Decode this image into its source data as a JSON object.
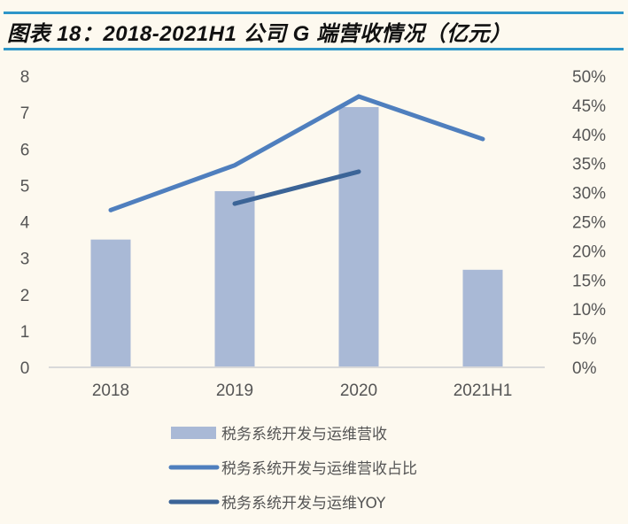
{
  "header": {
    "title": "图表 18：2018-2021H1 公司 G 端营收情况（亿元）",
    "rule_color": "#2e96c8"
  },
  "colors": {
    "background": "#fdf9ef",
    "bar": "#a9b9d6",
    "share_line": "#4f7fbe",
    "yoy_line": "#3b6497",
    "axis_line": "#d9d9d9",
    "tick_text": "#555555"
  },
  "chart_data": {
    "type": "bar",
    "title": "2018-2021H1 公司 G 端营收情况（亿元）",
    "xlabel": "",
    "ylabel": "",
    "categories": [
      "2018",
      "2019",
      "2020",
      "2021H1"
    ],
    "left_axis": {
      "ylim": [
        0,
        8
      ],
      "ticks": [
        "0",
        "1",
        "2",
        "3",
        "4",
        "5",
        "6",
        "7",
        "8"
      ]
    },
    "right_axis": {
      "ylim": [
        0,
        0.5
      ],
      "ticks": [
        "0%",
        "5%",
        "10%",
        "15%",
        "20%",
        "25%",
        "30%",
        "35%",
        "40%",
        "45%",
        "50%"
      ]
    },
    "grid": false,
    "legend_position": "bottom",
    "series": [
      {
        "name": "税务系统开发与运维营收",
        "type": "bar",
        "axis": "left",
        "values": [
          3.51,
          4.84,
          7.15,
          2.68
        ]
      },
      {
        "name": "税务系统开发与运维营收占比",
        "type": "line",
        "axis": "right",
        "values": [
          0.27,
          0.347,
          0.465,
          0.392
        ]
      },
      {
        "name": "税务系统开发与运维YOY",
        "type": "line",
        "axis": "right",
        "values": [
          null,
          0.281,
          0.336,
          null
        ]
      }
    ]
  },
  "legend": {
    "items": [
      {
        "label": "税务系统开发与运维营收",
        "kind": "bar"
      },
      {
        "label": "税务系统开发与运维营收占比",
        "kind": "line"
      },
      {
        "label": "税务系统开发与运维YOY",
        "kind": "line"
      }
    ]
  }
}
